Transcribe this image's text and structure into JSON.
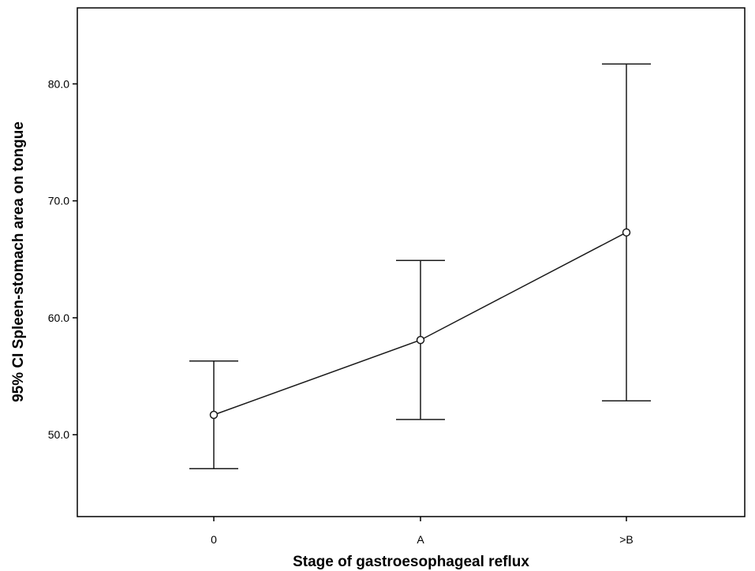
{
  "chart_data": {
    "type": "line",
    "categories": [
      "0",
      "A",
      ">B"
    ],
    "series": [
      {
        "values": [
          51.7,
          58.1,
          67.3
        ],
        "ci_lower": [
          47.1,
          51.3,
          52.9
        ],
        "ci_upper": [
          56.3,
          64.9,
          81.7
        ]
      }
    ],
    "xlabel": "Stage of gastroesophageal reflux",
    "ylabel": "95% CI Spleen-stomach area on tongue",
    "yticks": [
      50.0,
      60.0,
      70.0,
      80.0
    ],
    "ytick_labels": [
      "50.0",
      "60.0",
      "70.0",
      "80.0"
    ],
    "ylim": [
      43.0,
      86.5
    ],
    "grid": false,
    "legend": "none",
    "colors": {
      "line": "#1a1a1a",
      "frame": "#000000",
      "background": "#ffffff"
    }
  }
}
